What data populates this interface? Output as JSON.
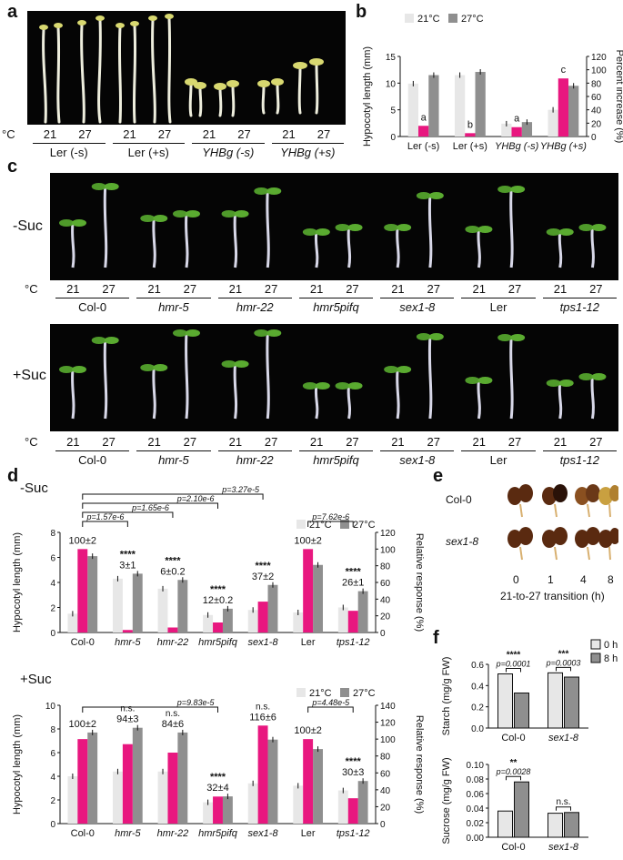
{
  "panels": {
    "a": "a",
    "b": "b",
    "c": "c",
    "d": "d",
    "e": "e",
    "f": "f"
  },
  "colors": {
    "c21": "#e7e7e7",
    "c27": "#8f8f8f",
    "pct": "#e8177f",
    "bar_edge": "#222222"
  },
  "panel_a": {
    "deg": "°C",
    "temps": [
      "21",
      "27",
      "21",
      "27",
      "21",
      "27",
      "21",
      "27"
    ],
    "groups": [
      "Ler (-s)",
      "Ler (+s)",
      "YHBg (-s)",
      "YHBg (+s)"
    ]
  },
  "panel_c": {
    "deg": "°C",
    "row1": "-Suc",
    "row2": "+Suc",
    "temps": [
      "21",
      "27",
      "21",
      "27",
      "21",
      "27",
      "21",
      "27",
      "21",
      "27",
      "21",
      "27",
      "21",
      "27"
    ],
    "groups": [
      "Col-0",
      "hmr-5",
      "hmr-22",
      "hmr5pifq",
      "sex1-8",
      "Ler",
      "tps1-12"
    ]
  },
  "panel_e": {
    "rows": [
      "Col-0",
      "sex1-8"
    ],
    "times": [
      "0",
      "1",
      "4",
      "8"
    ],
    "xlabel": "21-to-27 transition (h)"
  },
  "chart_data": [
    {
      "id": "b",
      "type": "bar",
      "categories": [
        "Ler (-s)",
        "Ler (+s)",
        "YHBg (-s)",
        "YHBg (+s)"
      ],
      "series": [
        {
          "name": "21°C",
          "values": [
            9.9,
            11.5,
            2.4,
            5.0
          ]
        },
        {
          "name": "27°C",
          "values": [
            11.5,
            12.1,
            2.7,
            9.5
          ]
        },
        {
          "name": "Percent increase",
          "values": [
            16,
            5,
            14,
            87
          ],
          "axis": "right"
        }
      ],
      "letters": [
        "a",
        "b",
        "a",
        "c"
      ],
      "ylabel": "Hypocotyl length (mm)",
      "y2label": "Percent increase (%)",
      "ylim": [
        0,
        15
      ],
      "y2lim": [
        0,
        120
      ],
      "yticks": [
        "0",
        "5",
        "10",
        "15"
      ],
      "y2ticks": [
        "0",
        "20",
        "40",
        "60",
        "80",
        "100",
        "120"
      ],
      "legend": [
        "21°C",
        "27°C"
      ]
    },
    {
      "id": "d-top",
      "type": "bar",
      "title": "-Suc",
      "categories": [
        "Col-0",
        "hmr-5",
        "hmr-22",
        "hmr5pifq",
        "sex1-8",
        "Ler",
        "tps1-12"
      ],
      "series": [
        {
          "name": "21°C",
          "values": [
            1.5,
            4.3,
            3.5,
            1.4,
            1.8,
            1.6,
            2.0
          ]
        },
        {
          "name": "27°C",
          "values": [
            6.1,
            4.7,
            4.2,
            1.9,
            3.8,
            5.4,
            3.3
          ]
        },
        {
          "name": "Relative response",
          "values": [
            100,
            3,
            6,
            12,
            37,
            100,
            26
          ],
          "axis": "right"
        }
      ],
      "annotations": [
        "100±2",
        "3±1",
        "6±0.2",
        "12±0.2",
        "37±2",
        "100±2",
        "26±1"
      ],
      "stars": [
        "",
        "****",
        "****",
        "****",
        "****",
        "",
        "****"
      ],
      "pvalues": [
        "p=1.57e-6",
        "p=1.65e-6",
        "p=2.10e-6",
        "p=3.27e-5",
        "p=7.62e-6"
      ],
      "ylabel": "Hypocotyl length (mm)",
      "y2label": "Relative response (%)",
      "ylim": [
        0,
        8
      ],
      "y2lim": [
        0,
        120
      ],
      "yticks": [
        "0",
        "2",
        "4",
        "6",
        "8"
      ],
      "y2ticks": [
        "0",
        "20",
        "40",
        "60",
        "80",
        "100",
        "120"
      ],
      "legend": [
        "21°C",
        "27°C"
      ]
    },
    {
      "id": "d-bottom",
      "type": "bar",
      "title": "+Suc",
      "categories": [
        "Col-0",
        "hmr-5",
        "hmr-22",
        "hmr5pifq",
        "sex1-8",
        "Ler",
        "tps1-12"
      ],
      "series": [
        {
          "name": "21°C",
          "values": [
            4.0,
            4.4,
            4.4,
            1.8,
            3.4,
            3.2,
            2.8
          ]
        },
        {
          "name": "27°C",
          "values": [
            7.7,
            8.1,
            7.7,
            2.3,
            7.1,
            6.3,
            3.6
          ]
        },
        {
          "name": "Relative response",
          "values": [
            100,
            94,
            84,
            32,
            116,
            100,
            30
          ],
          "axis": "right"
        }
      ],
      "annotations": [
        "100±2",
        "94±3",
        "84±6",
        "32±4",
        "116±6",
        "100±2",
        "30±3"
      ],
      "stars": [
        "",
        "n.s.",
        "n.s.",
        "****",
        "n.s.",
        "",
        "****"
      ],
      "pvalues": [
        "p=9.83e-5",
        "p=4.48e-5"
      ],
      "ylabel": "Hypocotyl length (mm)",
      "y2label": "Relative response (%)",
      "ylim": [
        0,
        10
      ],
      "y2lim": [
        0,
        140
      ],
      "yticks": [
        "0",
        "2",
        "4",
        "6",
        "8",
        "10"
      ],
      "y2ticks": [
        "0",
        "20",
        "40",
        "60",
        "80",
        "100",
        "120",
        "140"
      ],
      "legend": [
        "21°C",
        "27°C"
      ]
    },
    {
      "id": "f-top",
      "type": "bar",
      "categories": [
        "Col-0",
        "sex1-8"
      ],
      "series": [
        {
          "name": "0 h",
          "values": [
            0.51,
            0.52
          ]
        },
        {
          "name": "8 h",
          "values": [
            0.33,
            0.48
          ]
        }
      ],
      "stars": [
        "****",
        "***"
      ],
      "pvalues": [
        "p=0.0001",
        "p=0.0003"
      ],
      "ylabel": "Starch (mg/g FW)",
      "ylim": [
        0,
        0.6
      ],
      "yticks": [
        "0.0",
        "0.2",
        "0.4",
        "0.6"
      ],
      "legend": [
        "0 h",
        "8 h"
      ]
    },
    {
      "id": "f-bottom",
      "type": "bar",
      "categories": [
        "Col-0",
        "sex1-8"
      ],
      "series": [
        {
          "name": "0 h",
          "values": [
            0.036,
            0.033
          ]
        },
        {
          "name": "8 h",
          "values": [
            0.076,
            0.034
          ]
        }
      ],
      "stars": [
        "**",
        "n.s."
      ],
      "pvalues": [
        "p=0.0028",
        ""
      ],
      "ylabel": "Sucrose (mg/g FW)",
      "ylim": [
        0,
        0.1
      ],
      "yticks": [
        "0.00",
        "0.02",
        "0.04",
        "0.06",
        "0.08",
        "0.10"
      ]
    }
  ]
}
